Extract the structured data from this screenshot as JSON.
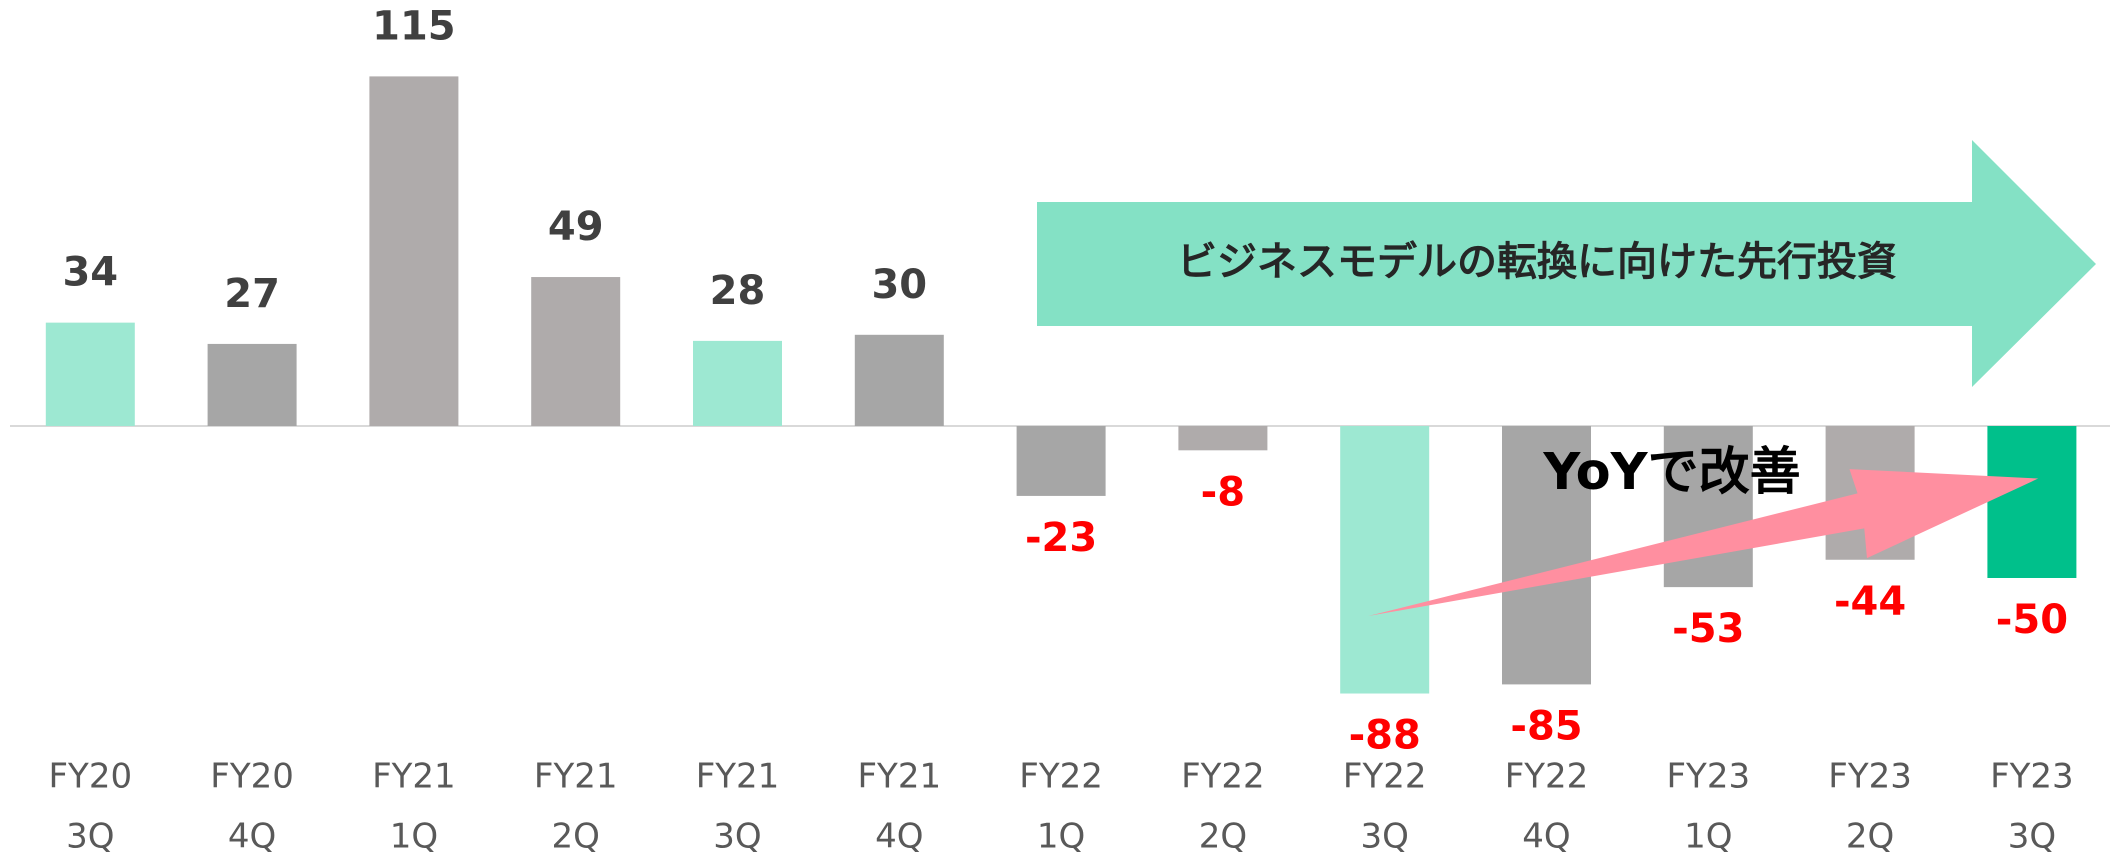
{
  "chart_data": {
    "type": "bar",
    "categories": [
      [
        "FY20",
        "3Q"
      ],
      [
        "FY20",
        "4Q"
      ],
      [
        "FY21",
        "1Q"
      ],
      [
        "FY21",
        "2Q"
      ],
      [
        "FY21",
        "3Q"
      ],
      [
        "FY21",
        "4Q"
      ],
      [
        "FY22",
        "1Q"
      ],
      [
        "FY22",
        "2Q"
      ],
      [
        "FY22",
        "3Q"
      ],
      [
        "FY22",
        "4Q"
      ],
      [
        "FY23",
        "1Q"
      ],
      [
        "FY23",
        "2Q"
      ],
      [
        "FY23",
        "3Q"
      ]
    ],
    "values": [
      34,
      27,
      115,
      49,
      28,
      30,
      -23,
      -8,
      -88,
      -85,
      -53,
      -44,
      -50
    ],
    "colors": [
      "#9de8d2",
      "#a6a6a6",
      "#afabab",
      "#afabab",
      "#9de8d2",
      "#a6a6a6",
      "#a6a6a6",
      "#afabab",
      "#9de8d2",
      "#a6a6a6",
      "#a6a6a6",
      "#afabab",
      "#00c08b"
    ],
    "label_color": "#404040",
    "negative_label_color": "#ff0000",
    "ylim": [
      -100,
      125
    ],
    "annotations": [
      "ビジネスモデルの転換に向けた先行投資",
      "YoYで改善"
    ]
  }
}
